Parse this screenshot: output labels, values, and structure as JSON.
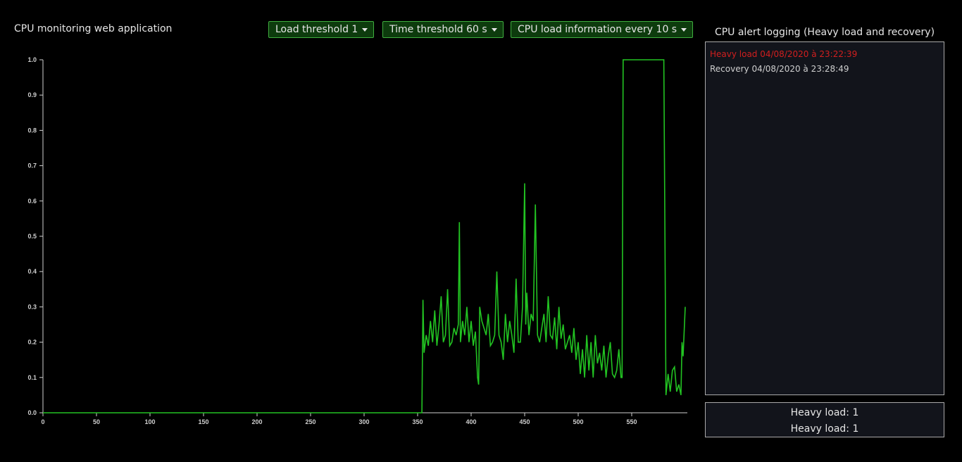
{
  "header": {
    "title": "CPU monitoring web application"
  },
  "controls": [
    "Load threshold 1",
    "Time threshold 60 s",
    "CPU load information every 10 s"
  ],
  "log": {
    "title": "CPU alert logging (Heavy load and recovery)",
    "entries": [
      "Heavy load 04/08/2020 à 23:22:39",
      "Recovery 04/08/2020 à 23:28:49"
    ]
  },
  "summary": [
    "Heavy load: 1",
    "Heavy load: 1"
  ],
  "chart_data": {
    "type": "line",
    "x": [
      0,
      354,
      355,
      356,
      358,
      360,
      362,
      364,
      366,
      368,
      370,
      372,
      374,
      376,
      378,
      380,
      382,
      384,
      386,
      388,
      389,
      390,
      392,
      394,
      396,
      398,
      400,
      402,
      404,
      406,
      407,
      408,
      410,
      412,
      414,
      416,
      418,
      420,
      422,
      424,
      426,
      428,
      430,
      432,
      434,
      436,
      438,
      440,
      442,
      444,
      446,
      448,
      450,
      451,
      452,
      454,
      456,
      458,
      460,
      462,
      464,
      466,
      468,
      470,
      472,
      474,
      476,
      478,
      480,
      482,
      484,
      486,
      488,
      490,
      492,
      494,
      496,
      498,
      500,
      502,
      504,
      506,
      508,
      510,
      512,
      514,
      516,
      518,
      520,
      522,
      524,
      526,
      528,
      530,
      532,
      534,
      536,
      538,
      540,
      541,
      542,
      580,
      582,
      584,
      586,
      588,
      590,
      592,
      594,
      596,
      597,
      598,
      600
    ],
    "series": [
      {
        "color": "#22c322",
        "values": [
          0,
          0,
          0.32,
          0.17,
          0.22,
          0.19,
          0.26,
          0.2,
          0.29,
          0.19,
          0.25,
          0.33,
          0.2,
          0.22,
          0.35,
          0.19,
          0.2,
          0.24,
          0.22,
          0.25,
          0.54,
          0.2,
          0.26,
          0.22,
          0.3,
          0.2,
          0.26,
          0.19,
          0.23,
          0.1,
          0.08,
          0.3,
          0.26,
          0.24,
          0.22,
          0.28,
          0.19,
          0.2,
          0.22,
          0.4,
          0.22,
          0.2,
          0.15,
          0.28,
          0.2,
          0.26,
          0.22,
          0.17,
          0.38,
          0.2,
          0.2,
          0.3,
          0.65,
          0.25,
          0.34,
          0.22,
          0.28,
          0.26,
          0.59,
          0.22,
          0.2,
          0.24,
          0.28,
          0.2,
          0.33,
          0.22,
          0.21,
          0.27,
          0.18,
          0.3,
          0.21,
          0.25,
          0.18,
          0.2,
          0.22,
          0.17,
          0.24,
          0.15,
          0.2,
          0.11,
          0.18,
          0.1,
          0.22,
          0.12,
          0.2,
          0.1,
          0.22,
          0.14,
          0.17,
          0.12,
          0.19,
          0.1,
          0.16,
          0.2,
          0.11,
          0.1,
          0.12,
          0.18,
          0.1,
          0.1,
          1,
          1,
          0.05,
          0.11,
          0.06,
          0.12,
          0.13,
          0.06,
          0.08,
          0.05,
          0.2,
          0.16,
          0.3
        ]
      }
    ],
    "xlim": [
      0,
      600
    ],
    "ylim": [
      0,
      1
    ],
    "xticks": [
      0,
      50,
      100,
      150,
      200,
      250,
      300,
      350,
      400,
      450,
      500,
      550
    ],
    "yticks": [
      {
        "value": 0,
        "label": "0.0"
      },
      0.1,
      0.2,
      0.3,
      0.4,
      0.5,
      0.6,
      0.7,
      0.8,
      0.9,
      {
        "value": 1,
        "label": "1.0"
      }
    ]
  }
}
